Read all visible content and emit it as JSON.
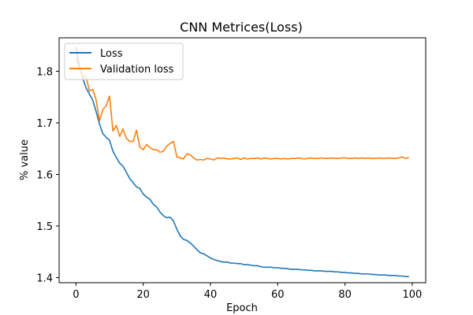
{
  "chart_data": {
    "type": "line",
    "title": "CNN Metrices(Loss)",
    "xlabel": "Epoch",
    "ylabel": "% value",
    "xlim": [
      -5,
      104
    ],
    "ylim": [
      1.39,
      1.865
    ],
    "xticks": [
      0,
      20,
      40,
      60,
      80,
      100
    ],
    "yticks": [
      1.4,
      1.5,
      1.6,
      1.7,
      1.8
    ],
    "grid": false,
    "legend_position": "top-left",
    "series": [
      {
        "name": "Loss",
        "color": "#1f77b4",
        "x": [
          0,
          1,
          2,
          3,
          4,
          5,
          6,
          7,
          8,
          9,
          10,
          11,
          12,
          13,
          14,
          15,
          16,
          17,
          18,
          19,
          20,
          21,
          22,
          23,
          24,
          25,
          26,
          27,
          28,
          29,
          30,
          31,
          32,
          33,
          34,
          35,
          36,
          37,
          38,
          39,
          40,
          41,
          42,
          43,
          44,
          45,
          46,
          47,
          48,
          49,
          50,
          51,
          52,
          53,
          54,
          55,
          56,
          57,
          58,
          59,
          60,
          61,
          62,
          63,
          64,
          65,
          66,
          67,
          68,
          69,
          70,
          71,
          72,
          73,
          74,
          75,
          76,
          77,
          78,
          79,
          80,
          81,
          82,
          83,
          84,
          85,
          86,
          87,
          88,
          89,
          90,
          91,
          92,
          93,
          94,
          95,
          96,
          97,
          98,
          99
        ],
        "values": [
          1.848,
          1.81,
          1.787,
          1.768,
          1.756,
          1.744,
          1.722,
          1.698,
          1.679,
          1.672,
          1.666,
          1.645,
          1.633,
          1.622,
          1.616,
          1.604,
          1.592,
          1.584,
          1.576,
          1.573,
          1.562,
          1.556,
          1.552,
          1.542,
          1.537,
          1.527,
          1.52,
          1.516,
          1.517,
          1.51,
          1.494,
          1.481,
          1.474,
          1.472,
          1.467,
          1.461,
          1.454,
          1.448,
          1.446,
          1.442,
          1.438,
          1.435,
          1.433,
          1.431,
          1.43,
          1.43,
          1.428,
          1.428,
          1.427,
          1.427,
          1.425,
          1.425,
          1.424,
          1.423,
          1.423,
          1.421,
          1.42,
          1.42,
          1.42,
          1.419,
          1.419,
          1.418,
          1.418,
          1.417,
          1.416,
          1.416,
          1.416,
          1.415,
          1.415,
          1.414,
          1.414,
          1.413,
          1.413,
          1.413,
          1.412,
          1.412,
          1.412,
          1.411,
          1.411,
          1.41,
          1.41,
          1.409,
          1.409,
          1.408,
          1.408,
          1.407,
          1.407,
          1.407,
          1.406,
          1.406,
          1.405,
          1.405,
          1.405,
          1.404,
          1.404,
          1.404,
          1.403,
          1.403,
          1.402,
          1.402
        ]
      },
      {
        "name": "Validation loss",
        "color": "#ff7f0e",
        "x": [
          0,
          1,
          2,
          3,
          4,
          5,
          6,
          7,
          8,
          9,
          10,
          11,
          12,
          13,
          14,
          15,
          16,
          17,
          18,
          19,
          20,
          21,
          22,
          23,
          24,
          25,
          26,
          27,
          28,
          29,
          30,
          31,
          32,
          33,
          34,
          35,
          36,
          37,
          38,
          39,
          40,
          41,
          42,
          43,
          44,
          45,
          46,
          47,
          48,
          49,
          50,
          51,
          52,
          53,
          54,
          55,
          56,
          57,
          58,
          59,
          60,
          61,
          62,
          63,
          64,
          65,
          66,
          67,
          68,
          69,
          70,
          71,
          72,
          73,
          74,
          75,
          76,
          77,
          78,
          79,
          80,
          81,
          82,
          83,
          84,
          85,
          86,
          87,
          88,
          89,
          90,
          91,
          92,
          93,
          94,
          95,
          96,
          97,
          98,
          99
        ],
        "values": [
          1.826,
          1.806,
          1.79,
          1.79,
          1.762,
          1.765,
          1.745,
          1.704,
          1.726,
          1.733,
          1.752,
          1.684,
          1.695,
          1.674,
          1.688,
          1.67,
          1.664,
          1.664,
          1.686,
          1.653,
          1.648,
          1.658,
          1.652,
          1.648,
          1.648,
          1.643,
          1.645,
          1.655,
          1.66,
          1.664,
          1.634,
          1.632,
          1.63,
          1.64,
          1.638,
          1.632,
          1.628,
          1.629,
          1.628,
          1.631,
          1.63,
          1.628,
          1.632,
          1.631,
          1.632,
          1.63,
          1.63,
          1.631,
          1.632,
          1.629,
          1.632,
          1.63,
          1.631,
          1.631,
          1.632,
          1.63,
          1.632,
          1.631,
          1.63,
          1.631,
          1.631,
          1.63,
          1.631,
          1.63,
          1.631,
          1.631,
          1.632,
          1.631,
          1.63,
          1.631,
          1.632,
          1.631,
          1.631,
          1.632,
          1.631,
          1.631,
          1.632,
          1.631,
          1.631,
          1.632,
          1.632,
          1.631,
          1.631,
          1.632,
          1.631,
          1.632,
          1.631,
          1.632,
          1.631,
          1.631,
          1.632,
          1.631,
          1.631,
          1.632,
          1.631,
          1.631,
          1.632,
          1.634,
          1.631,
          1.633
        ]
      }
    ]
  }
}
